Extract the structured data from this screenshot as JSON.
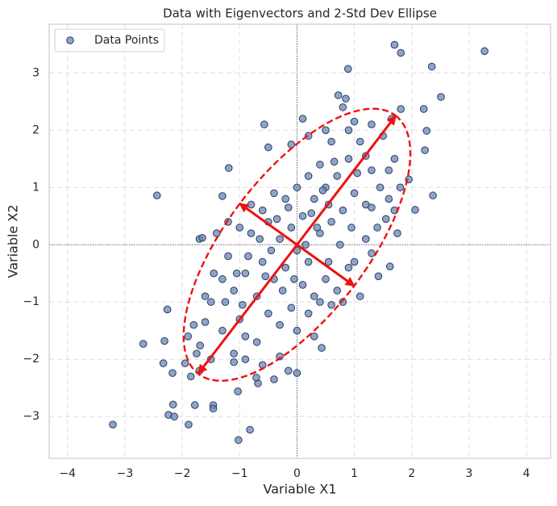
{
  "chart_data": {
    "type": "scatter",
    "title": "Data with Eigenvectors and 2-Std Dev Ellipse",
    "x_label": "Variable X1",
    "y_label": "Variable X2",
    "xlim": [
      -4.32,
      4.42
    ],
    "ylim": [
      -3.73,
      3.85
    ],
    "xticks": [
      {
        "value": -4,
        "label": "−4"
      },
      {
        "value": -3,
        "label": "−3"
      },
      {
        "value": -2,
        "label": "−2"
      },
      {
        "value": -1,
        "label": "−1"
      },
      0,
      1,
      2,
      3,
      4
    ],
    "yticks": [
      {
        "value": -3,
        "label": "−3"
      },
      {
        "value": -2,
        "label": "−2"
      },
      {
        "value": -1,
        "label": "−1"
      },
      0,
      1,
      2,
      3
    ],
    "grid": true,
    "legend": "upper left",
    "series": [
      {
        "name": "Data Points",
        "color": "#6a86b5",
        "edge_color": "#2b3d63",
        "x": [
          1.7,
          1.81,
          3.27,
          2.35,
          0.89,
          2.51,
          2.21,
          1.81,
          0.72,
          -0.57,
          2.26,
          2.23,
          1.95,
          2.06,
          2.37,
          -2.44,
          -1.19,
          1.62,
          1.42,
          0.43,
          0,
          -2.26,
          -2.68,
          -2.31,
          -2.33,
          -2.17,
          -2.16,
          -2.24,
          -2.14,
          -1.89,
          -3.21,
          -1.78,
          -1.46,
          -1.46,
          -0.82,
          -1.02,
          -1.03,
          -0.68,
          -0.71,
          -1.95,
          -1.69,
          -1.8,
          -1.6,
          -1.5,
          -1.7,
          -1.65,
          -1.3,
          -1.2,
          -1.1,
          -1.0,
          -0.9,
          -0.8,
          -0.7,
          -0.6,
          -0.5,
          -0.4,
          -0.3,
          -0.2,
          -0.1,
          0,
          0.1,
          0.2,
          0.3,
          0.4,
          0.5,
          0.6,
          0.7,
          0.8,
          0.9,
          1.0,
          1.1,
          1.2,
          1.3,
          1.4,
          1.5,
          1.6,
          1.7,
          1.55,
          1.3,
          1.0,
          0.8,
          0.6,
          0.4,
          0.2,
          0,
          -0.2,
          -0.4,
          -0.6,
          -0.8,
          -1.0,
          -1.2,
          -1.4,
          -1.3,
          -0.5,
          -0.1,
          0.1,
          0.2,
          0.5,
          0.85,
          0.9,
          1.2,
          1.6,
          1.7,
          0.9,
          0.7,
          0.5,
          0.3,
          0.1,
          -0.1,
          -0.3,
          -0.5,
          -0.7,
          -0.9,
          -1.1,
          -1.3,
          -1.5,
          -1.7,
          -1.9,
          -1.1,
          -0.9,
          -0.6,
          -0.3,
          0,
          0.2,
          0.4,
          0.6,
          0.8,
          1.0,
          1.2,
          0.95,
          0.75,
          0.55,
          0.35,
          0.15,
          -0.05,
          -0.25,
          -0.45,
          -0.65,
          -0.85,
          -1.05,
          -1.25,
          -1.45,
          -1.6,
          -1.75,
          -1.85,
          -0.4,
          -0.15,
          0.3,
          0.55,
          1.1,
          1.3,
          1.45,
          1.65,
          1.8,
          1.75,
          1.3,
          1.05,
          0.25,
          -0.35,
          -0.55,
          -0.15,
          0.65,
          0.45,
          -0.95
        ],
        "y": [
          3.49,
          3.35,
          3.38,
          3.11,
          3.07,
          2.58,
          2.37,
          2.37,
          2.61,
          2.1,
          1.99,
          1.65,
          1.14,
          0.61,
          0.86,
          0.86,
          1.34,
          -0.38,
          -0.55,
          -1.8,
          -2.24,
          -1.13,
          -1.73,
          -1.68,
          -2.07,
          -2.24,
          -2.79,
          -2.97,
          -3.0,
          -3.14,
          -3.14,
          -2.8,
          -2.8,
          -2.86,
          -3.23,
          -3.41,
          -2.56,
          -2.42,
          -2.32,
          -2.07,
          -1.76,
          -1.4,
          -0.9,
          -1.0,
          0.1,
          0.12,
          -0.6,
          -0.2,
          -0.8,
          -1.3,
          -0.5,
          0.2,
          -0.9,
          -0.3,
          0.4,
          -0.6,
          0.1,
          -0.4,
          0.3,
          -0.1,
          0.5,
          -0.3,
          0.8,
          0.2,
          1.0,
          0.4,
          1.2,
          0.6,
          1.5,
          0.9,
          1.8,
          0.7,
          1.3,
          0.3,
          1.9,
          0.8,
          1.5,
          0.45,
          2.1,
          2.15,
          2.4,
          1.8,
          1.4,
          1.2,
          1.0,
          0.8,
          0.9,
          0.6,
          0.7,
          0.3,
          0.4,
          0.2,
          0.85,
          1.7,
          1.75,
          2.2,
          1.9,
          2.0,
          2.55,
          2.0,
          1.55,
          1.3,
          0.6,
          -0.4,
          -0.8,
          -0.6,
          -0.9,
          -0.7,
          -1.1,
          -1.4,
          -1.2,
          -1.7,
          -1.6,
          -1.9,
          -1.5,
          -2.0,
          -2.2,
          -1.6,
          -2.05,
          -2.0,
          -2.1,
          -1.95,
          -1.5,
          -1.2,
          -1.0,
          -1.05,
          -1.0,
          -0.3,
          0.1,
          0.3,
          0,
          0.7,
          0.3,
          0,
          -0.6,
          -0.8,
          -0.1,
          0.1,
          -0.2,
          -0.5,
          -1.0,
          -0.5,
          -1.35,
          -1.9,
          -2.3,
          -2.35,
          -2.2,
          -1.6,
          -0.3,
          -0.9,
          -0.15,
          1.0,
          2.2,
          1.0,
          0.2,
          0.65,
          1.25,
          0.55,
          0.45,
          -0.55,
          0.65,
          1.45,
          0.95,
          -1.05
        ]
      }
    ],
    "ellipse": {
      "center": [
        0,
        0
      ],
      "width": 5.66,
      "height": 2.46,
      "angle": 52.6,
      "color": "#ee1111"
    },
    "arrows": [
      {
        "start": [
          0,
          0
        ],
        "end": [
          1.72,
          2.25
        ],
        "color": "#ee1111"
      },
      {
        "start": [
          0,
          0
        ],
        "end": [
          -1.72,
          -2.25
        ],
        "color": "#ee1111"
      },
      {
        "start": [
          0,
          0
        ],
        "end": [
          -1.0,
          0.72
        ],
        "color": "#ee1111"
      },
      {
        "start": [
          0,
          0
        ],
        "end": [
          1.0,
          -0.72
        ],
        "color": "#ee1111"
      }
    ]
  }
}
